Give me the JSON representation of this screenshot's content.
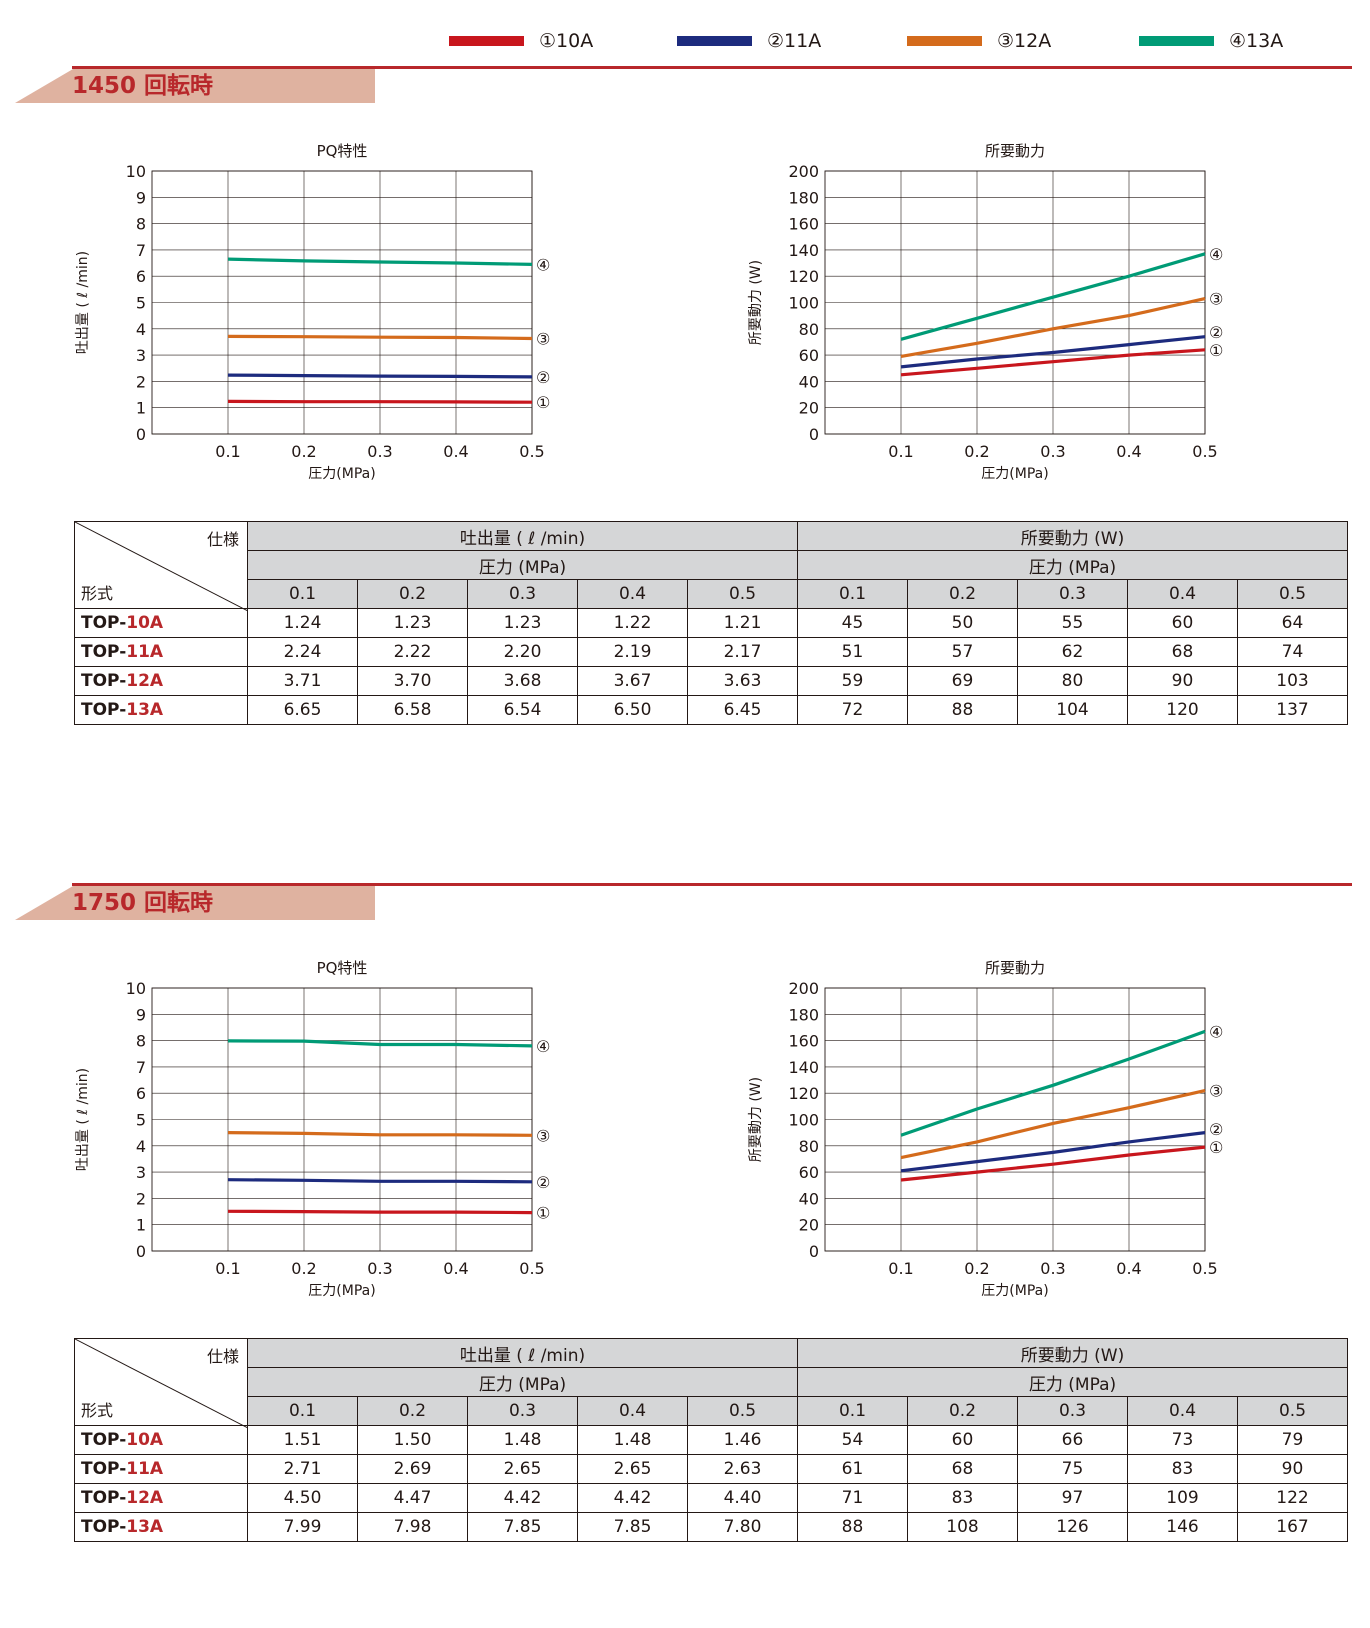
{
  "legend": [
    {
      "label": "①10A",
      "color": "#c8161d"
    },
    {
      "label": "②11A",
      "color": "#1d2b7e"
    },
    {
      "label": "③12A",
      "color": "#d46b1c"
    },
    {
      "label": "④13A",
      "color": "#009b76"
    }
  ],
  "colors": {
    "accent": "#b8282b",
    "tab": "#dfb2a0",
    "header": "#d5d6d7"
  },
  "sections": [
    {
      "title": "1450 回転時",
      "table": {
        "corner_spec": "仕様",
        "corner_model": "形式",
        "group1": "吐出量 ( ℓ /min)",
        "group2": "所要動力 (W)",
        "pressure": "圧力 (MPa)",
        "cols": [
          "0.1",
          "0.2",
          "0.3",
          "0.4",
          "0.5"
        ],
        "rows": [
          {
            "prefix": "TOP-",
            "num": "10A",
            "flow": [
              "1.24",
              "1.23",
              "1.23",
              "1.22",
              "1.21"
            ],
            "power": [
              "45",
              "50",
              "55",
              "60",
              "64"
            ]
          },
          {
            "prefix": "TOP-",
            "num": "11A",
            "flow": [
              "2.24",
              "2.22",
              "2.20",
              "2.19",
              "2.17"
            ],
            "power": [
              "51",
              "57",
              "62",
              "68",
              "74"
            ]
          },
          {
            "prefix": "TOP-",
            "num": "12A",
            "flow": [
              "3.71",
              "3.70",
              "3.68",
              "3.67",
              "3.63"
            ],
            "power": [
              "59",
              "69",
              "80",
              "90",
              "103"
            ]
          },
          {
            "prefix": "TOP-",
            "num": "13A",
            "flow": [
              "6.65",
              "6.58",
              "6.54",
              "6.50",
              "6.45"
            ],
            "power": [
              "72",
              "88",
              "104",
              "120",
              "137"
            ]
          }
        ]
      }
    },
    {
      "title": "1750 回転時",
      "table": {
        "corner_spec": "仕様",
        "corner_model": "形式",
        "group1": "吐出量 ( ℓ /min)",
        "group2": "所要動力 (W)",
        "pressure": "圧力 (MPa)",
        "cols": [
          "0.1",
          "0.2",
          "0.3",
          "0.4",
          "0.5"
        ],
        "rows": [
          {
            "prefix": "TOP-",
            "num": "10A",
            "flow": [
              "1.51",
              "1.50",
              "1.48",
              "1.48",
              "1.46"
            ],
            "power": [
              "54",
              "60",
              "66",
              "73",
              "79"
            ]
          },
          {
            "prefix": "TOP-",
            "num": "11A",
            "flow": [
              "2.71",
              "2.69",
              "2.65",
              "2.65",
              "2.63"
            ],
            "power": [
              "61",
              "68",
              "75",
              "83",
              "90"
            ]
          },
          {
            "prefix": "TOP-",
            "num": "12A",
            "flow": [
              "4.50",
              "4.47",
              "4.42",
              "4.42",
              "4.40"
            ],
            "power": [
              "71",
              "83",
              "97",
              "109",
              "122"
            ]
          },
          {
            "prefix": "TOP-",
            "num": "13A",
            "flow": [
              "7.99",
              "7.98",
              "7.85",
              "7.85",
              "7.80"
            ],
            "power": [
              "88",
              "108",
              "126",
              "146",
              "167"
            ]
          }
        ]
      }
    }
  ],
  "chart_data": [
    {
      "type": "line",
      "title": "PQ特性",
      "xlabel": "圧力(MPa)",
      "ylabel": "吐出量 ( ℓ /min)",
      "xlim": [
        0,
        0.5
      ],
      "ylim": [
        0,
        10
      ],
      "grid": true,
      "xticks": [
        "0.1",
        "0.2",
        "0.3",
        "0.4",
        "0.5"
      ],
      "yticks": [
        "0",
        "1",
        "2",
        "3",
        "4",
        "5",
        "6",
        "7",
        "8",
        "9",
        "10"
      ],
      "x": [
        0.1,
        0.2,
        0.3,
        0.4,
        0.5
      ],
      "series": [
        {
          "name": "①",
          "color": "#c8161d",
          "values": [
            1.24,
            1.23,
            1.23,
            1.22,
            1.21
          ]
        },
        {
          "name": "②",
          "color": "#1d2b7e",
          "values": [
            2.24,
            2.22,
            2.2,
            2.19,
            2.17
          ]
        },
        {
          "name": "③",
          "color": "#d46b1c",
          "values": [
            3.71,
            3.7,
            3.68,
            3.67,
            3.63
          ]
        },
        {
          "name": "④",
          "color": "#009b76",
          "values": [
            6.65,
            6.58,
            6.54,
            6.5,
            6.45
          ]
        }
      ]
    },
    {
      "type": "line",
      "title": "所要動力",
      "xlabel": "圧力(MPa)",
      "ylabel": "所要動力 (W)",
      "xlim": [
        0,
        0.5
      ],
      "ylim": [
        0,
        200
      ],
      "grid": true,
      "xticks": [
        "0.1",
        "0.2",
        "0.3",
        "0.4",
        "0.5"
      ],
      "yticks": [
        "0",
        "20",
        "40",
        "60",
        "80",
        "100",
        "120",
        "140",
        "160",
        "180",
        "200"
      ],
      "x": [
        0.1,
        0.2,
        0.3,
        0.4,
        0.5
      ],
      "series": [
        {
          "name": "①",
          "color": "#c8161d",
          "values": [
            45,
            50,
            55,
            60,
            64
          ]
        },
        {
          "name": "②",
          "color": "#1d2b7e",
          "values": [
            51,
            57,
            62,
            68,
            74
          ]
        },
        {
          "name": "③",
          "color": "#d46b1c",
          "values": [
            59,
            69,
            80,
            90,
            103
          ]
        },
        {
          "name": "④",
          "color": "#009b76",
          "values": [
            72,
            88,
            104,
            120,
            137
          ]
        }
      ]
    },
    {
      "type": "line",
      "title": "PQ特性",
      "xlabel": "圧力(MPa)",
      "ylabel": "吐出量 ( ℓ /min)",
      "xlim": [
        0,
        0.5
      ],
      "ylim": [
        0,
        10
      ],
      "grid": true,
      "xticks": [
        "0.1",
        "0.2",
        "0.3",
        "0.4",
        "0.5"
      ],
      "yticks": [
        "0",
        "1",
        "2",
        "3",
        "4",
        "5",
        "6",
        "7",
        "8",
        "9",
        "10"
      ],
      "x": [
        0.1,
        0.2,
        0.3,
        0.4,
        0.5
      ],
      "series": [
        {
          "name": "①",
          "color": "#c8161d",
          "values": [
            1.51,
            1.5,
            1.48,
            1.48,
            1.46
          ]
        },
        {
          "name": "②",
          "color": "#1d2b7e",
          "values": [
            2.71,
            2.69,
            2.65,
            2.65,
            2.63
          ]
        },
        {
          "name": "③",
          "color": "#d46b1c",
          "values": [
            4.5,
            4.47,
            4.42,
            4.42,
            4.4
          ]
        },
        {
          "name": "④",
          "color": "#009b76",
          "values": [
            7.99,
            7.98,
            7.85,
            7.85,
            7.8
          ]
        }
      ]
    },
    {
      "type": "line",
      "title": "所要動力",
      "xlabel": "圧力(MPa)",
      "ylabel": "所要動力 (W)",
      "xlim": [
        0,
        0.5
      ],
      "ylim": [
        0,
        200
      ],
      "grid": true,
      "xticks": [
        "0.1",
        "0.2",
        "0.3",
        "0.4",
        "0.5"
      ],
      "yticks": [
        "0",
        "20",
        "40",
        "60",
        "80",
        "100",
        "120",
        "140",
        "160",
        "180",
        "200"
      ],
      "x": [
        0.1,
        0.2,
        0.3,
        0.4,
        0.5
      ],
      "series": [
        {
          "name": "①",
          "color": "#c8161d",
          "values": [
            54,
            60,
            66,
            73,
            79
          ]
        },
        {
          "name": "②",
          "color": "#1d2b7e",
          "values": [
            61,
            68,
            75,
            83,
            90
          ]
        },
        {
          "name": "③",
          "color": "#d46b1c",
          "values": [
            71,
            83,
            97,
            109,
            122
          ]
        },
        {
          "name": "④",
          "color": "#009b76",
          "values": [
            88,
            108,
            126,
            146,
            167
          ]
        }
      ]
    }
  ]
}
